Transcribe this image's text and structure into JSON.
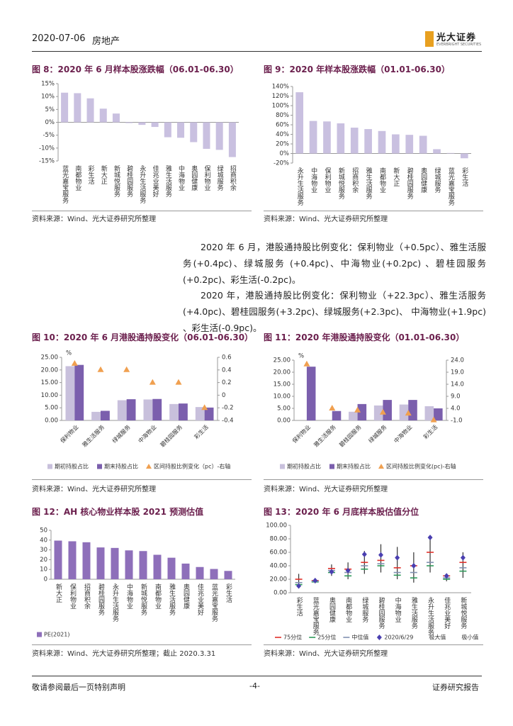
{
  "header": {
    "date": "2020-07-06",
    "sector": "房地产",
    "logo": "光大证券",
    "logo_sub": "EVERBRIGHT SECURITIES"
  },
  "paragraphs": [
    "2020 年 6 月，港股通持股比例变化：保利物业（+0.5pc）、雅生活服务(+0.4pc)、绿城服务 (+0.4pc)、中海物业(+0.2pc) 、碧桂园服务(+0.2pc)、彩生活(-0.2pc)。",
    "2020 年，港股通持股比例变化：保利物业（+22.3pc）、雅生活服务(+4.0pc)、碧桂园服务(+3.2pc)、绿城服务(+2.3pc)、 中海物业(+1.9pc) 、彩生活(-0.9pc)。"
  ],
  "footer": {
    "left": "敬请参阅最后一页特别声明",
    "center": "-4-",
    "right": "证券研究报告"
  },
  "chart_data": [
    {
      "type": "bar",
      "title": "图 8：2020 年 6 月样本股涨跌幅（06.01-06.30）",
      "source": "资料来源：Wind、光大证券研究所整理",
      "categories": [
        "蓝光嘉宝服务",
        "南都物业",
        "彩生活",
        "新大正",
        "新城悦服务",
        "碧桂园服务",
        "永升生活服务",
        "佳兆业美好",
        "雅生活服务",
        "中海物业",
        "奥园健康",
        "保利物业",
        "绿城服务",
        "招商积余"
      ],
      "series": [
        {
          "name": "涨跌幅",
          "color": "#c9c0e0",
          "values": [
            11.5,
            11.3,
            9.3,
            5.3,
            3.4,
            -0.3,
            -1.0,
            -1.8,
            -5.8,
            -6.0,
            -7.7,
            -10.3,
            -10.7,
            -13.5
          ]
        }
      ],
      "ylim": [
        -15,
        15
      ],
      "yticks": [
        {
          "value": -15,
          "label": "-15%"
        },
        {
          "value": -10,
          "label": "-10%"
        },
        {
          "value": -5,
          "label": "-5%"
        },
        {
          "value": 0,
          "label": "0%"
        },
        {
          "value": 5,
          "label": "5%"
        },
        {
          "value": 10,
          "label": "10%"
        },
        {
          "value": 15,
          "label": "15%"
        }
      ],
      "legend": false
    },
    {
      "type": "bar",
      "title": "图 9：2020 年样本股涨跌幅（01.01-06.30）",
      "source": "资料来源：Wind、光大证券研究所整理",
      "categories": [
        "永升生活服务",
        "中海物业",
        "保利物业",
        "新城悦服务",
        "招商积余",
        "雅生活服务",
        "南都物业",
        "新大正",
        "碧桂园服务",
        "奥园健康",
        "绿城服务",
        "蓝光嘉宝服务",
        "彩生活"
      ],
      "series": [
        {
          "name": "涨跌幅",
          "color": "#c9c0e0",
          "values": [
            128,
            68,
            67,
            63,
            54,
            51,
            47,
            40,
            39,
            37,
            9,
            1,
            -10
          ]
        }
      ],
      "ylim": [
        -20,
        140
      ],
      "yticks": [
        {
          "value": -20,
          "label": "-20%"
        },
        {
          "value": 0,
          "label": "0%"
        },
        {
          "value": 20,
          "label": "20%"
        },
        {
          "value": 40,
          "label": "40%"
        },
        {
          "value": 60,
          "label": "60%"
        },
        {
          "value": 80,
          "label": "80%"
        },
        {
          "value": 100,
          "label": "100%"
        },
        {
          "value": 120,
          "label": "120%"
        },
        {
          "value": 140,
          "label": "140%"
        }
      ],
      "legend": false
    },
    {
      "type": "bar",
      "title": "图 10：2020 年 6 月港股通持股变化（06.01-06.30）",
      "source": "资料来源：Wind、光大证券研究所整理",
      "unit": "%",
      "categories": [
        "保利物业",
        "雅生活服务",
        "绿城服务",
        "中海物业",
        "碧桂园服务",
        "彩生活"
      ],
      "series": [
        {
          "name": "期初持股占比",
          "color": "#c8c0dc",
          "marker": "bar",
          "values": [
            21.5,
            3.4,
            8.0,
            8.3,
            6.5,
            5.3
          ]
        },
        {
          "name": "期末持股占比",
          "color": "#7b5fad",
          "marker": "bar",
          "values": [
            22.0,
            3.8,
            8.4,
            8.5,
            6.7,
            5.1
          ]
        },
        {
          "name": "区间持股比例变化（pc）-右轴",
          "color": "#f0a050",
          "marker": "triangle",
          "axis": "y2",
          "values": [
            0.5,
            0.4,
            0.4,
            0.2,
            0.2,
            -0.2
          ]
        }
      ],
      "ylim": [
        0,
        25
      ],
      "yticks": [
        {
          "value": 0,
          "label": "0.00"
        },
        {
          "value": 5,
          "label": "5.00"
        },
        {
          "value": 10,
          "label": "10.00"
        },
        {
          "value": 15,
          "label": "15.00"
        },
        {
          "value": 20,
          "label": "20.00"
        },
        {
          "value": 25,
          "label": "25.00"
        }
      ],
      "y2lim": [
        -0.4,
        0.6
      ],
      "y2ticks": [
        -0.4,
        -0.2,
        0,
        0.2,
        0.4,
        0.6
      ],
      "legend": true
    },
    {
      "type": "bar",
      "title": "图 11：2020 年港股通持股变化（01.01-06.30）",
      "source": "资料来源：Wind、光大证券研究所整理",
      "unit": "%",
      "categories": [
        "保利物业",
        "雅生活服务",
        "碧桂园服务",
        "绿城服务",
        "中海物业",
        "彩生活"
      ],
      "series": [
        {
          "name": "期初持股占比",
          "color": "#c8c0dc",
          "marker": "bar",
          "values": [
            0,
            0,
            3.6,
            6.2,
            6.6,
            5.9
          ]
        },
        {
          "name": "期末持股占比",
          "color": "#7b5fad",
          "marker": "bar",
          "values": [
            22.3,
            3.9,
            6.8,
            8.5,
            8.5,
            5.0
          ]
        },
        {
          "name": "区间持股比例变化(pc)-右轴",
          "color": "#f0a050",
          "marker": "triangle",
          "axis": "y2",
          "values": [
            22.3,
            4.0,
            3.2,
            2.3,
            1.9,
            -0.9
          ]
        }
      ],
      "ylim": [
        0,
        25
      ],
      "yticks": [
        {
          "value": 0,
          "label": "0.00"
        },
        {
          "value": 5,
          "label": "5.00"
        },
        {
          "value": 10,
          "label": "10.00"
        },
        {
          "value": 15,
          "label": "15.00"
        },
        {
          "value": 20,
          "label": "20.00"
        },
        {
          "value": 25,
          "label": "25.00"
        }
      ],
      "y2lim": [
        -1,
        24
      ],
      "y2ticks": [
        {
          "value": -1,
          "label": "-1.0"
        },
        {
          "value": 4,
          "label": "4.0"
        },
        {
          "value": 9,
          "label": "9.0"
        },
        {
          "value": 14,
          "label": "14.0"
        },
        {
          "value": 19,
          "label": "19.0"
        },
        {
          "value": 24,
          "label": "24.0"
        }
      ],
      "legend": true
    },
    {
      "type": "bar",
      "title": "图 12：AH 核心物业样本股 2021 预测估值",
      "source": "资料来源：Wind、光大证券研究所整理；截止 2020.3.31",
      "categories": [
        "新大正",
        "保利物业",
        "招商积余",
        "碧桂园服务",
        "永升生活服务",
        "中海物业",
        "新城悦服务",
        "南都物业",
        "雅生活服务",
        "奥园健康",
        "佳兆业美好",
        "蓝光嘉宝服务",
        "彩生活"
      ],
      "series": [
        {
          "name": "PE(2021)",
          "color": "#8e6fba",
          "marker": "bar",
          "values": [
            39.5,
            38.8,
            37.8,
            32.5,
            32,
            29.5,
            28.8,
            25,
            22,
            16,
            12.5,
            10.5,
            8.5
          ]
        }
      ],
      "ylim": [
        0,
        50
      ],
      "yticks": [
        0,
        10,
        20,
        30,
        40,
        50
      ],
      "legend": true
    },
    {
      "type": "range",
      "title": "图 13：2020 年 6 月底样本股估值分位",
      "source": "资料来源：Wind、光大证券研究所整理",
      "categories": [
        "彩生活",
        "蓝光嘉宝服务",
        "奥园健康",
        "南都物业",
        "绿城服务",
        "碧桂园服务",
        "中海物业",
        "雅生活服务",
        "永升生活服务",
        "佳兆业美好",
        "新城悦服务"
      ],
      "series": [
        {
          "name": "75分位",
          "color": "#e0302a",
          "marker": "dash",
          "values": [
            20,
            18,
            36,
            35,
            45,
            48,
            37,
            40,
            60,
            25,
            45
          ]
        },
        {
          "name": "25分位",
          "color": "#2e9a5a",
          "marker": "dash",
          "values": [
            12,
            16,
            30,
            25,
            35,
            40,
            26,
            22,
            40,
            20,
            32
          ]
        },
        {
          "name": "中位值",
          "color": "#8090b0",
          "marker": "dash",
          "values": [
            15,
            17,
            33,
            30,
            40,
            43,
            30,
            30,
            45,
            22,
            37
          ]
        },
        {
          "name": "2020/6/29",
          "color": "#4a3fb0",
          "marker": "diamond",
          "values": [
            10,
            18,
            31,
            33,
            57,
            56,
            52,
            40,
            82,
            25,
            52
          ]
        },
        {
          "name": "极大值",
          "color": "#333333",
          "marker": "whisker",
          "values": [
            28,
            20,
            42,
            45,
            62,
            72,
            68,
            60,
            85,
            28,
            60
          ]
        },
        {
          "name": "极小值",
          "color": "#333333",
          "marker": "whisker",
          "values": [
            8,
            14,
            25,
            20,
            28,
            30,
            20,
            15,
            30,
            17,
            22
          ]
        }
      ],
      "ylim": [
        0,
        100
      ],
      "yticks": [
        {
          "value": 0,
          "label": "0.00"
        },
        {
          "value": 20,
          "label": "20.00"
        },
        {
          "value": 40,
          "label": "40.00"
        },
        {
          "value": 60,
          "label": "60.00"
        },
        {
          "value": 80,
          "label": "80.00"
        },
        {
          "value": 100,
          "label": "100.00"
        }
      ],
      "legend": true
    }
  ]
}
